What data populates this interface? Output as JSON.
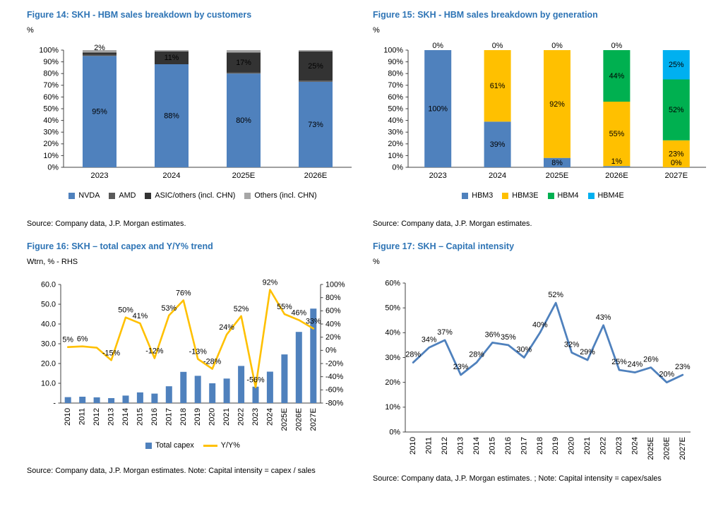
{
  "styles": {
    "title_color": "#2e74b5",
    "bar_blue": "#4f81bd",
    "amber": "#ffc000",
    "green": "#00b050",
    "cyan": "#00b0f0"
  },
  "chart_data": [
    {
      "type": "stacked-bar",
      "title": "Figure 14: SKH - HBM sales breakdown by customers",
      "unit_label": "%",
      "source": "Source: Company data, J.P. Morgan estimates.",
      "categories": [
        "2023",
        "2024",
        "2025E",
        "2026E"
      ],
      "ylim": [
        0,
        100
      ],
      "ytick_step": 10,
      "grid": false,
      "legend_position": "bottom",
      "series": [
        {
          "name": "NVDA",
          "color": "#4f81bd",
          "values": [
            95,
            88,
            80,
            73
          ],
          "labels": [
            "95%",
            "88%",
            "80%",
            "73%"
          ],
          "label_color": "#000000"
        },
        {
          "name": "AMD",
          "color": "#595959",
          "values": [
            1,
            0,
            1,
            1
          ],
          "labels": [
            "",
            "",
            "",
            ""
          ]
        },
        {
          "name": "ASIC/others (incl. CHN)",
          "color": "#333333",
          "values": [
            2,
            11,
            17,
            25
          ],
          "labels": [
            "2%",
            "11%",
            "17%",
            "25%"
          ],
          "label_color": "#ffffff"
        },
        {
          "name": "Others (incl. CHN)",
          "color": "#a6a6a6",
          "values": [
            2,
            1,
            2,
            1
          ],
          "labels": [
            "",
            "",
            "",
            ""
          ]
        }
      ]
    },
    {
      "type": "stacked-bar",
      "title": "Figure 15: SKH - HBM sales breakdown by generation",
      "unit_label": "%",
      "source": "Source: Company data, J.P. Morgan estimates.",
      "categories": [
        "2023",
        "2024",
        "2025E",
        "2026E",
        "2027E"
      ],
      "ylim": [
        0,
        100
      ],
      "ytick_step": 10,
      "grid": false,
      "legend_position": "bottom",
      "series": [
        {
          "name": "HBM3",
          "color": "#4f81bd",
          "values": [
            100,
            39,
            8,
            1,
            0
          ],
          "labels": [
            "100%",
            "39%",
            "8%",
            "1%",
            "0%"
          ],
          "label_color": "#000000"
        },
        {
          "name": "HBM3E",
          "color": "#ffc000",
          "values": [
            0,
            61,
            92,
            55,
            23
          ],
          "labels": [
            "0%",
            "61%",
            "92%",
            "55%",
            "23%"
          ],
          "label_color": "#000000"
        },
        {
          "name": "HBM4",
          "color": "#00b050",
          "values": [
            0,
            0,
            0,
            44,
            52
          ],
          "labels": [
            "",
            "0%",
            "0%",
            "44%",
            "52%"
          ],
          "label_color": "#000000"
        },
        {
          "name": "HBM4E",
          "color": "#00b0f0",
          "values": [
            0,
            0,
            0,
            0,
            25
          ],
          "labels": [
            "",
            "",
            "",
            "0%",
            "25%"
          ],
          "label_color": "#000000"
        }
      ]
    },
    {
      "type": "bar-line",
      "title": "Figure 16: SKH – total capex and Y/Y% trend",
      "unit_label": "Wtrn, % - RHS",
      "source": "Source: Company data, J.P. Morgan estimates. Note: Capital intensity = capex / sales",
      "categories": [
        "2010",
        "2011",
        "2012",
        "2013",
        "2014",
        "2015",
        "2016",
        "2017",
        "2018",
        "2019",
        "2020",
        "2021",
        "2022",
        "2023",
        "2024",
        "2025E",
        "2026E",
        "2027E"
      ],
      "bar_series": {
        "name": "Total capex",
        "color": "#4f81bd",
        "values": [
          3.0,
          3.2,
          2.9,
          2.5,
          3.8,
          5.4,
          4.8,
          8.5,
          15.8,
          13.8,
          10.0,
          12.4,
          18.8,
          8.3,
          15.9,
          24.6,
          36.0,
          47.8
        ]
      },
      "line_series": {
        "name": "Y/Y%",
        "color": "#ffc000",
        "values": [
          5,
          6,
          4,
          -15,
          50,
          41,
          -12,
          53,
          76,
          -13,
          -28,
          24,
          52,
          -56,
          92,
          55,
          46,
          33
        ],
        "labels": [
          "5%",
          "6%",
          "",
          "-15%",
          "50%",
          "41%",
          "-12%",
          "53%",
          "76%",
          "-13%",
          "-28%",
          "24%",
          "52%",
          "-56%",
          "92%",
          "55%",
          "46%",
          "33%"
        ]
      },
      "left_axis": {
        "min": 0,
        "max": 60,
        "step": 10,
        "labels": [
          "-",
          "10.0",
          "20.0",
          "30.0",
          "40.0",
          "50.0",
          "60.0"
        ]
      },
      "right_axis": {
        "min": -80,
        "max": 100,
        "step": 20
      }
    },
    {
      "type": "line",
      "title": "Figure 17: SKH – Capital intensity",
      "unit_label": "%",
      "source": "Source: Company data, J.P. Morgan estimates. ; Note: Capital intensity = capex/sales",
      "categories": [
        "2010",
        "2011",
        "2012",
        "2013",
        "2014",
        "2015",
        "2016",
        "2017",
        "2018",
        "2019",
        "2020",
        "2021",
        "2022",
        "2023",
        "2024",
        "2025E",
        "2026E",
        "2027E"
      ],
      "ylim": [
        0,
        60
      ],
      "ytick_step": 10,
      "series": [
        {
          "name": "Capital intensity",
          "color": "#4f81bd",
          "values": [
            28,
            34,
            37,
            23,
            28,
            36,
            35,
            30,
            40,
            52,
            32,
            29,
            43,
            25,
            24,
            26,
            20,
            23
          ],
          "labels": [
            "28%",
            "34%",
            "37%",
            "23%",
            "28%",
            "36%",
            "35%",
            "30%",
            "40%",
            "52%",
            "32%",
            "29%",
            "43%",
            "25%",
            "24%",
            "26%",
            "20%",
            "23%"
          ]
        }
      ]
    }
  ]
}
